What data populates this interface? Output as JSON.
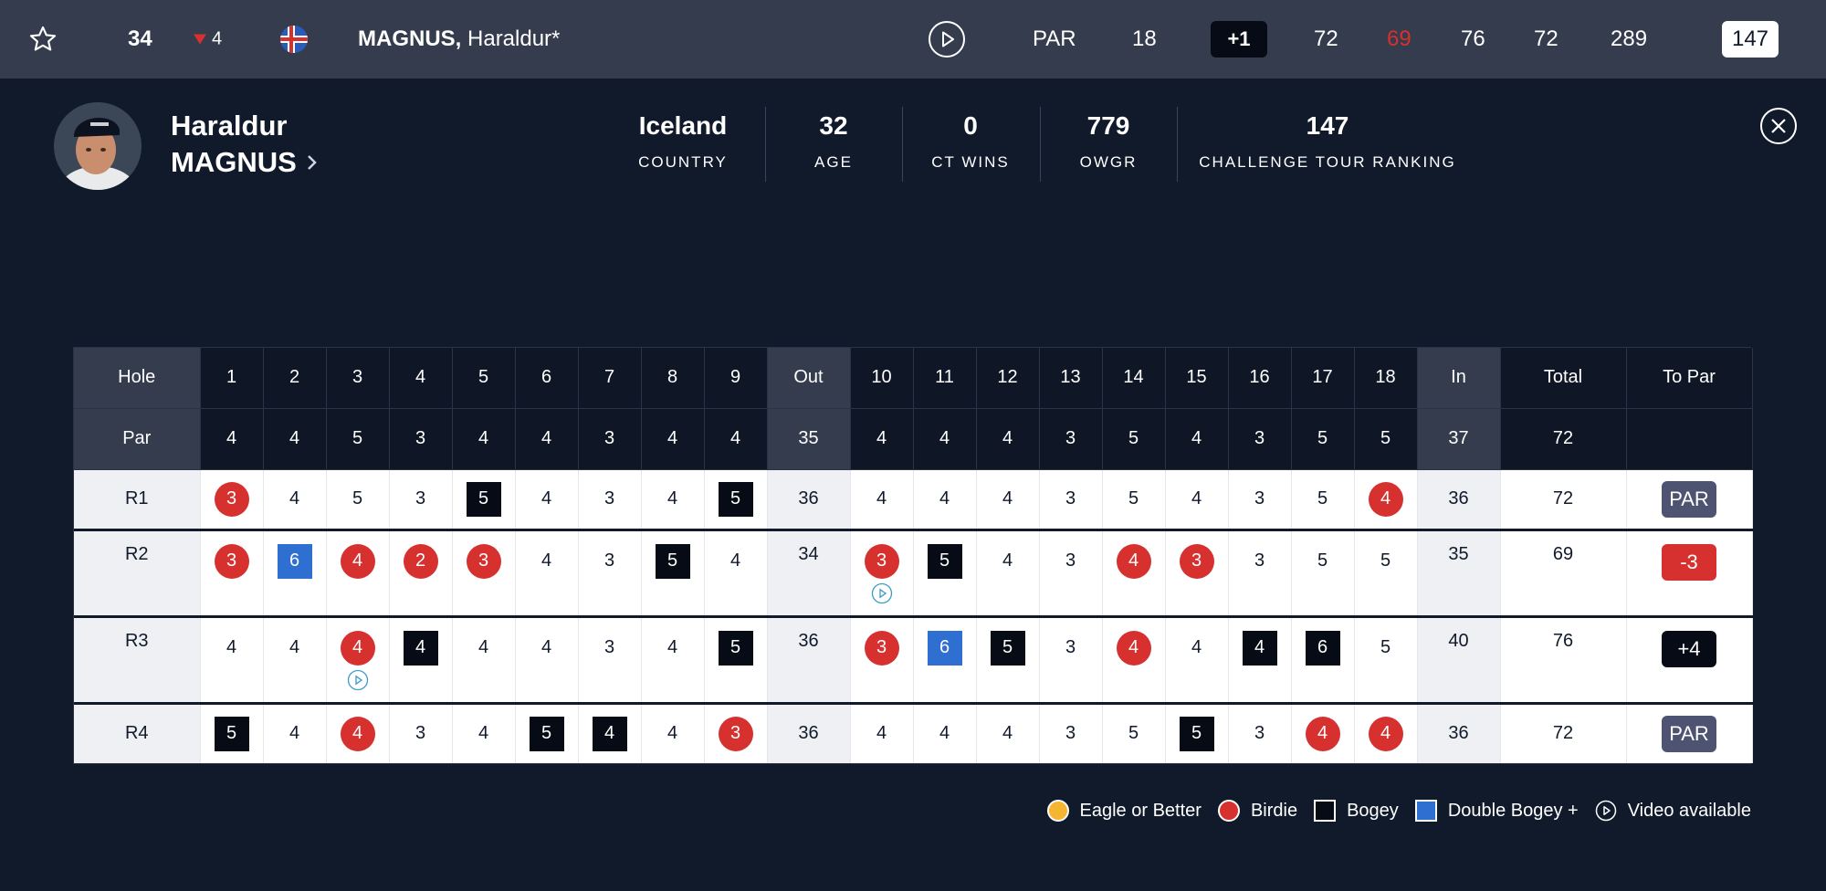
{
  "topbar": {
    "position": "34",
    "movement": "4",
    "player_last": "MAGNUS,",
    "player_first": " Haraldur*",
    "hole_label": "PAR",
    "hole": "18",
    "to_par": "+1",
    "r1": "72",
    "r2": "69",
    "r3": "76",
    "r4": "72",
    "total": "289",
    "rank": "147"
  },
  "player": {
    "first_name": "Haraldur",
    "last_name": "MAGNUS",
    "stats": [
      {
        "value": "Iceland",
        "label": "COUNTRY"
      },
      {
        "value": "32",
        "label": "AGE"
      },
      {
        "value": "0",
        "label": "CT WINS"
      },
      {
        "value": "779",
        "label": "OWGR"
      },
      {
        "value": "147",
        "label": "CHALLENGE TOUR RANKING"
      }
    ]
  },
  "scorecard": {
    "headers": [
      "Hole",
      "1",
      "2",
      "3",
      "4",
      "5",
      "6",
      "7",
      "8",
      "9",
      "Out",
      "10",
      "11",
      "12",
      "13",
      "14",
      "15",
      "16",
      "17",
      "18",
      "In",
      "Total",
      "To Par"
    ],
    "par_label": "Par",
    "par": [
      "4",
      "4",
      "5",
      "3",
      "4",
      "4",
      "3",
      "4",
      "4",
      "35",
      "4",
      "4",
      "4",
      "3",
      "5",
      "4",
      "3",
      "5",
      "5",
      "37",
      "72",
      ""
    ],
    "rounds": [
      {
        "label": "R1",
        "cells": [
          {
            "v": "3",
            "t": "birdie"
          },
          {
            "v": "4",
            "t": ""
          },
          {
            "v": "5",
            "t": ""
          },
          {
            "v": "3",
            "t": ""
          },
          {
            "v": "5",
            "t": "bogey"
          },
          {
            "v": "4",
            "t": ""
          },
          {
            "v": "3",
            "t": ""
          },
          {
            "v": "4",
            "t": ""
          },
          {
            "v": "5",
            "t": "bogey"
          },
          {
            "v": "36",
            "t": "sum"
          },
          {
            "v": "4",
            "t": ""
          },
          {
            "v": "4",
            "t": ""
          },
          {
            "v": "4",
            "t": ""
          },
          {
            "v": "3",
            "t": ""
          },
          {
            "v": "5",
            "t": ""
          },
          {
            "v": "4",
            "t": ""
          },
          {
            "v": "3",
            "t": ""
          },
          {
            "v": "5",
            "t": ""
          },
          {
            "v": "4",
            "t": "birdie"
          },
          {
            "v": "36",
            "t": "sum"
          }
        ],
        "total": "72",
        "to_par": "PAR",
        "to_par_type": "par"
      },
      {
        "label": "R2",
        "cells": [
          {
            "v": "3",
            "t": "birdie"
          },
          {
            "v": "6",
            "t": "double"
          },
          {
            "v": "4",
            "t": "birdie"
          },
          {
            "v": "2",
            "t": "birdie"
          },
          {
            "v": "3",
            "t": "birdie"
          },
          {
            "v": "4",
            "t": ""
          },
          {
            "v": "3",
            "t": ""
          },
          {
            "v": "5",
            "t": "bogey"
          },
          {
            "v": "4",
            "t": ""
          },
          {
            "v": "34",
            "t": "sum"
          },
          {
            "v": "3",
            "t": "birdie",
            "video": true
          },
          {
            "v": "5",
            "t": "bogey"
          },
          {
            "v": "4",
            "t": ""
          },
          {
            "v": "3",
            "t": ""
          },
          {
            "v": "4",
            "t": "birdie"
          },
          {
            "v": "3",
            "t": "birdie"
          },
          {
            "v": "3",
            "t": ""
          },
          {
            "v": "5",
            "t": ""
          },
          {
            "v": "5",
            "t": ""
          },
          {
            "v": "35",
            "t": "sum"
          }
        ],
        "total": "69",
        "to_par": "-3",
        "to_par_type": "under"
      },
      {
        "label": "R3",
        "cells": [
          {
            "v": "4",
            "t": ""
          },
          {
            "v": "4",
            "t": ""
          },
          {
            "v": "4",
            "t": "birdie",
            "video": true
          },
          {
            "v": "4",
            "t": "bogey"
          },
          {
            "v": "4",
            "t": ""
          },
          {
            "v": "4",
            "t": ""
          },
          {
            "v": "3",
            "t": ""
          },
          {
            "v": "4",
            "t": ""
          },
          {
            "v": "5",
            "t": "bogey"
          },
          {
            "v": "36",
            "t": "sum"
          },
          {
            "v": "3",
            "t": "birdie"
          },
          {
            "v": "6",
            "t": "double"
          },
          {
            "v": "5",
            "t": "bogey"
          },
          {
            "v": "3",
            "t": ""
          },
          {
            "v": "4",
            "t": "birdie"
          },
          {
            "v": "4",
            "t": ""
          },
          {
            "v": "4",
            "t": "bogey"
          },
          {
            "v": "6",
            "t": "bogey"
          },
          {
            "v": "5",
            "t": ""
          },
          {
            "v": "40",
            "t": "sum"
          }
        ],
        "total": "76",
        "to_par": "+4",
        "to_par_type": "over"
      },
      {
        "label": "R4",
        "cells": [
          {
            "v": "5",
            "t": "bogey"
          },
          {
            "v": "4",
            "t": ""
          },
          {
            "v": "4",
            "t": "birdie"
          },
          {
            "v": "3",
            "t": ""
          },
          {
            "v": "4",
            "t": ""
          },
          {
            "v": "5",
            "t": "bogey"
          },
          {
            "v": "4",
            "t": "bogey"
          },
          {
            "v": "4",
            "t": ""
          },
          {
            "v": "3",
            "t": "birdie"
          },
          {
            "v": "36",
            "t": "sum"
          },
          {
            "v": "4",
            "t": ""
          },
          {
            "v": "4",
            "t": ""
          },
          {
            "v": "4",
            "t": ""
          },
          {
            "v": "3",
            "t": ""
          },
          {
            "v": "5",
            "t": ""
          },
          {
            "v": "5",
            "t": "bogey"
          },
          {
            "v": "3",
            "t": ""
          },
          {
            "v": "4",
            "t": "birdie"
          },
          {
            "v": "4",
            "t": "birdie"
          },
          {
            "v": "36",
            "t": "sum"
          }
        ],
        "total": "72",
        "to_par": "PAR",
        "to_par_type": "par"
      }
    ]
  },
  "legend": {
    "eagle": "Eagle or Better",
    "birdie": "Birdie",
    "bogey": "Bogey",
    "double": "Double Bogey +",
    "video": "Video available"
  },
  "icons": {
    "star": "star-outline-icon",
    "play": "play-circle-icon",
    "close": "close-circle-icon",
    "chevron": "chevron-right-icon",
    "flag": "iceland-flag-icon",
    "down": "triangle-down-icon"
  },
  "colors": {
    "background": "#101a2b",
    "topbar": "#343c4d",
    "birdie": "#d6302f",
    "eagle": "#f5b431",
    "bogey": "#060b15",
    "double_bogey": "#2f6fd2",
    "par_badge": "#4d5371"
  }
}
